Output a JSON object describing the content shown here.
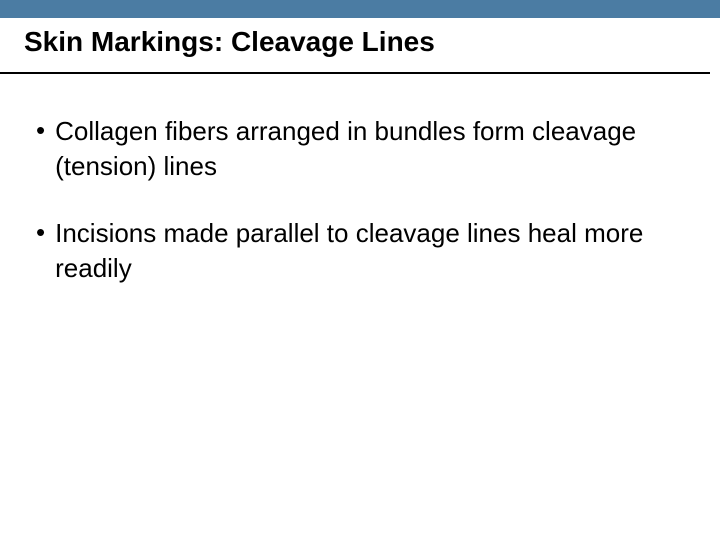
{
  "slide": {
    "title": "Skin Markings: Cleavage Lines",
    "bullets": [
      {
        "text": "Collagen fibers arranged in bundles form cleavage (tension) lines"
      },
      {
        "text": "Incisions made parallel to cleavage lines heal more readily"
      }
    ]
  },
  "styling": {
    "header_bar_color": "#4b7ca3",
    "background_color": "#ffffff",
    "title_fontsize": 28,
    "title_fontweight": "bold",
    "title_color": "#000000",
    "bullet_fontsize": 26,
    "bullet_color": "#000000",
    "divider_color": "#000000",
    "divider_width": 2,
    "slide_width": 720,
    "slide_height": 540
  }
}
